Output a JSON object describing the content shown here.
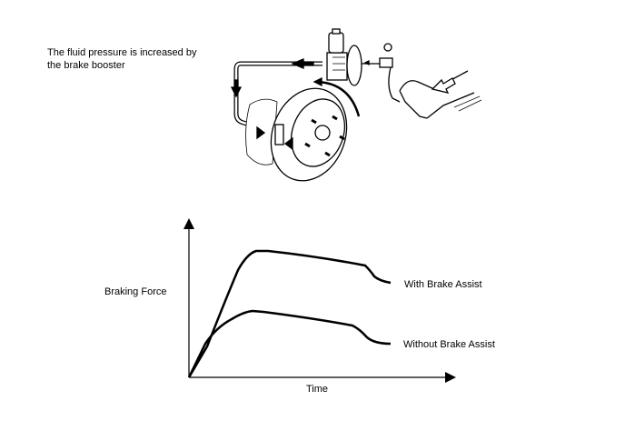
{
  "caption": {
    "line1": "The fluid pressure is increased by",
    "line2": "the brake booster"
  },
  "illustration": {
    "subject": "brake-pedal-booster-caliper-disc",
    "arrow_color": "#000000"
  },
  "graph": {
    "ylabel": "Braking Force",
    "xlabel": "Time",
    "series": [
      {
        "name": "With Brake Assist"
      },
      {
        "name": "Without Brake Assist"
      }
    ]
  }
}
